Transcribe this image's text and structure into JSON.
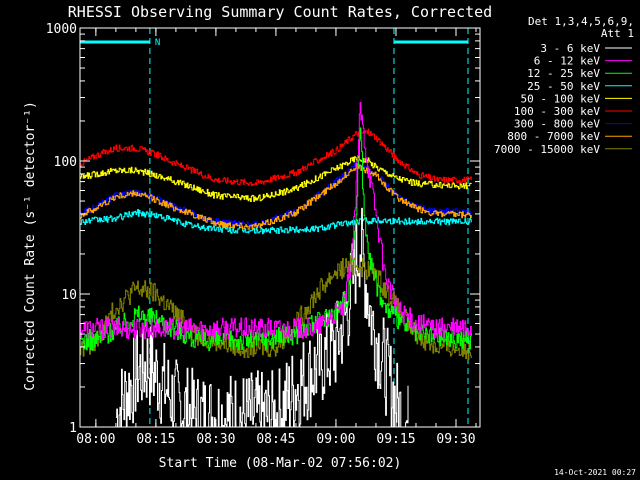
{
  "chart_data": {
    "type": "line",
    "title": "RHESSI Observing Summary Count Rates, Corrected",
    "xlabel": "Start Time (08-Mar-02 07:56:02)",
    "ylabel": "Corrected Count Rate (s⁻¹ detector⁻¹)",
    "y_scale": "log",
    "ylim": [
      1,
      1000
    ],
    "xlim": [
      "07:56:02",
      "09:36:00"
    ],
    "x_ticks": [
      "08:00",
      "08:15",
      "08:30",
      "08:45",
      "09:00",
      "09:15",
      "09:30"
    ],
    "y_ticks": [
      "1",
      "10",
      "100",
      "1000"
    ],
    "detector_info": [
      "Det 1,3,4,5,6,9,",
      "Att 1"
    ],
    "legend_position": "top-right",
    "night_markers": [
      {
        "start": "07:56:02",
        "end": "08:13:30",
        "label": "N"
      },
      {
        "start": "09:14:30",
        "end": "09:33:00",
        "label": ""
      }
    ],
    "footer_timestamp": "14-Oct-2021 00:27",
    "series": [
      {
        "name": "3 - 6 keV",
        "color": "#ffffff",
        "x": [
          "08:05",
          "08:10",
          "08:13",
          "08:15",
          "08:20",
          "08:25",
          "08:45",
          "08:50",
          "08:55",
          "09:00",
          "09:03",
          "09:05",
          "09:06",
          "09:07",
          "09:09",
          "09:12",
          "09:15",
          "09:18"
        ],
        "values": [
          1.2,
          2.5,
          3,
          2.5,
          1.5,
          1.2,
          1.2,
          2,
          2.8,
          4,
          8,
          18,
          25,
          15,
          6,
          3,
          1.5,
          1
        ]
      },
      {
        "name": "6 - 12 keV",
        "color": "#ff00ff",
        "x": [
          "07:56",
          "08:10",
          "08:25",
          "08:40",
          "08:55",
          "09:02",
          "09:04",
          "09:05",
          "09:06",
          "09:07",
          "09:08",
          "09:10",
          "09:12",
          "09:15",
          "09:20",
          "09:25",
          "09:34"
        ],
        "values": [
          5.5,
          5.5,
          5.5,
          5.5,
          5.5,
          8,
          20,
          60,
          250,
          150,
          90,
          40,
          15,
          8,
          6,
          5.5,
          5.5
        ]
      },
      {
        "name": "12 - 25 keV",
        "color": "#00ff00",
        "x": [
          "07:56",
          "08:00",
          "08:05",
          "08:10",
          "08:15",
          "08:20",
          "08:25",
          "08:40",
          "08:50",
          "08:55",
          "09:00",
          "09:03",
          "09:05",
          "09:06",
          "09:07",
          "09:09",
          "09:12",
          "09:20",
          "09:34"
        ],
        "values": [
          4.5,
          4.5,
          5.5,
          7,
          6.5,
          5.5,
          4.5,
          4.5,
          5,
          6,
          7.5,
          10,
          40,
          200,
          40,
          15,
          8,
          5,
          4.5
        ]
      },
      {
        "name": "25 - 50 keV",
        "color": "#00ffff",
        "x": [
          "07:56",
          "08:05",
          "08:10",
          "08:15",
          "08:25",
          "08:35",
          "08:45",
          "08:55",
          "09:00",
          "09:05",
          "09:10",
          "09:20",
          "09:34"
        ],
        "values": [
          35,
          37,
          41,
          39,
          32,
          30,
          30,
          31,
          33,
          35,
          36,
          35,
          35
        ]
      },
      {
        "name": "50 - 100 keV",
        "color": "#ffff00",
        "x": [
          "07:56",
          "08:00",
          "08:05",
          "08:10",
          "08:15",
          "08:20",
          "08:30",
          "08:40",
          "08:50",
          "09:00",
          "09:05",
          "09:08",
          "09:10",
          "09:15",
          "09:20",
          "09:25",
          "09:34"
        ],
        "values": [
          75,
          80,
          85,
          85,
          78,
          70,
          55,
          52,
          62,
          88,
          105,
          100,
          90,
          75,
          68,
          66,
          65
        ]
      },
      {
        "name": "100 - 300 keV",
        "color": "#ff0000",
        "x": [
          "07:56",
          "08:00",
          "08:05",
          "08:10",
          "08:15",
          "08:20",
          "08:30",
          "08:40",
          "08:50",
          "09:00",
          "09:05",
          "09:08",
          "09:10",
          "09:15",
          "09:20",
          "09:25",
          "09:34"
        ],
        "values": [
          95,
          110,
          125,
          125,
          112,
          95,
          72,
          68,
          82,
          120,
          160,
          165,
          150,
          105,
          80,
          72,
          72
        ]
      },
      {
        "name": "300 - 800 keV",
        "color": "#0000ff",
        "x": [
          "07:56",
          "08:00",
          "08:05",
          "08:10",
          "08:15",
          "08:20",
          "08:30",
          "08:40",
          "08:50",
          "09:00",
          "09:05",
          "09:10",
          "09:15",
          "09:20",
          "09:25",
          "09:34"
        ],
        "values": [
          40,
          45,
          55,
          58,
          52,
          45,
          35,
          33,
          42,
          70,
          95,
          80,
          55,
          45,
          42,
          41
        ]
      },
      {
        "name": "800 - 7000 keV",
        "color": "#ffa500",
        "x": [
          "07:56",
          "08:00",
          "08:05",
          "08:10",
          "08:15",
          "08:20",
          "08:30",
          "08:40",
          "08:50",
          "09:00",
          "09:05",
          "09:10",
          "09:15",
          "09:20",
          "09:25",
          "09:34"
        ],
        "values": [
          39,
          44,
          54,
          57,
          51,
          44,
          34,
          32,
          41,
          68,
          92,
          78,
          54,
          44,
          40,
          39
        ]
      },
      {
        "name": "7000 - 15000 keV",
        "color": "#808000",
        "x": [
          "07:56",
          "08:00",
          "08:05",
          "08:10",
          "08:15",
          "08:20",
          "08:25",
          "08:35",
          "08:45",
          "08:50",
          "08:55",
          "09:00",
          "09:05",
          "09:10",
          "09:15",
          "09:20",
          "09:25",
          "09:34"
        ],
        "values": [
          3.8,
          4.5,
          8,
          11,
          10,
          7,
          5,
          4,
          4,
          6,
          10,
          15,
          17,
          14,
          8,
          5,
          4,
          3.8
        ]
      }
    ]
  }
}
